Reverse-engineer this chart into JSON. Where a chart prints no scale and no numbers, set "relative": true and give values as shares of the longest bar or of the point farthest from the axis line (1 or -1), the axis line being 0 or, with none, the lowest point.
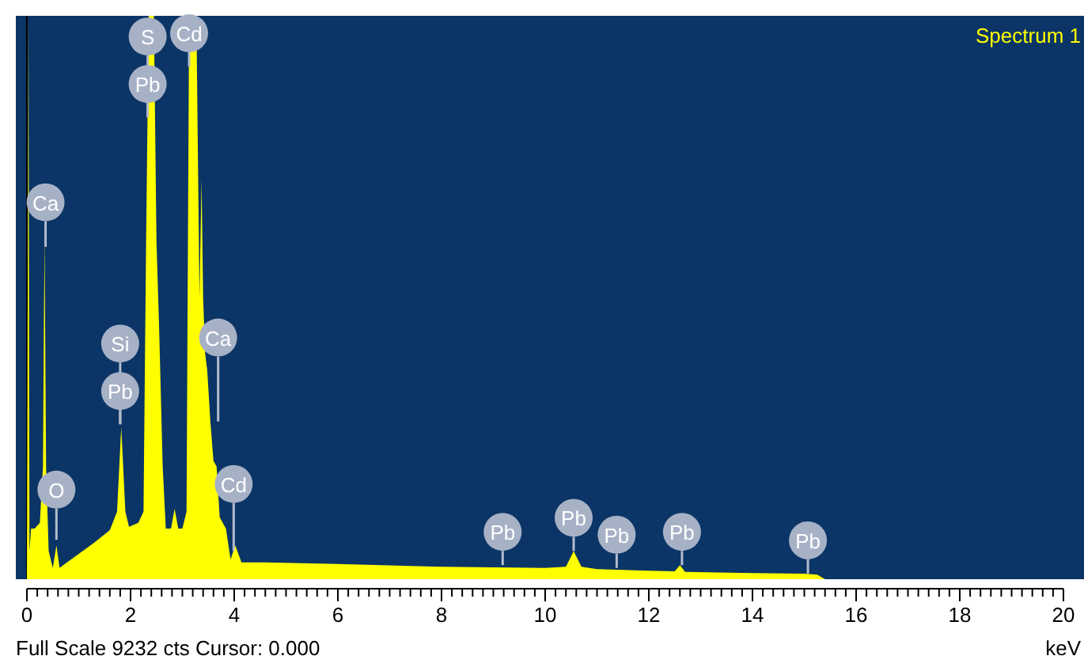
{
  "chart_data": {
    "type": "area",
    "relative": true,
    "xlabel": "keV",
    "xlim": [
      0,
      20
    ],
    "xticks": [
      0,
      {
        "value": 0.2,
        "label": null
      },
      {
        "value": 0.4,
        "label": null
      },
      {
        "value": 0.6,
        "label": null
      },
      {
        "value": 0.8,
        "label": null
      },
      {
        "value": 1,
        "label": null
      },
      {
        "value": 1.2,
        "label": null
      },
      {
        "value": 1.4,
        "label": null
      },
      {
        "value": 1.6,
        "label": null
      },
      {
        "value": 1.8,
        "label": null
      },
      2,
      {
        "value": 2.2,
        "label": null
      },
      {
        "value": 2.4,
        "label": null
      },
      {
        "value": 2.6,
        "label": null
      },
      {
        "value": 2.8,
        "label": null
      },
      {
        "value": 3,
        "label": null
      },
      {
        "value": 3.2,
        "label": null
      },
      {
        "value": 3.4,
        "label": null
      },
      {
        "value": 3.6,
        "label": null
      },
      {
        "value": 3.8,
        "label": null
      },
      4,
      {
        "value": 4.2,
        "label": null
      },
      {
        "value": 4.4,
        "label": null
      },
      {
        "value": 4.6,
        "label": null
      },
      {
        "value": 4.8,
        "label": null
      },
      {
        "value": 5,
        "label": null
      },
      {
        "value": 5.2,
        "label": null
      },
      {
        "value": 5.4,
        "label": null
      },
      {
        "value": 5.6,
        "label": null
      },
      {
        "value": 5.8,
        "label": null
      },
      6,
      {
        "value": 6.2,
        "label": null
      },
      {
        "value": 6.4,
        "label": null
      },
      {
        "value": 6.6,
        "label": null
      },
      {
        "value": 6.8,
        "label": null
      },
      {
        "value": 7,
        "label": null
      },
      {
        "value": 7.2,
        "label": null
      },
      {
        "value": 7.4,
        "label": null
      },
      {
        "value": 7.6,
        "label": null
      },
      {
        "value": 7.8,
        "label": null
      },
      8,
      {
        "value": 8.2,
        "label": null
      },
      {
        "value": 8.4,
        "label": null
      },
      {
        "value": 8.6,
        "label": null
      },
      {
        "value": 8.8,
        "label": null
      },
      {
        "value": 9,
        "label": null
      },
      {
        "value": 9.2,
        "label": null
      },
      {
        "value": 9.4,
        "label": null
      },
      {
        "value": 9.6,
        "label": null
      },
      {
        "value": 9.8,
        "label": null
      },
      10,
      {
        "value": 10.2,
        "label": null
      },
      {
        "value": 10.4,
        "label": null
      },
      {
        "value": 10.6,
        "label": null
      },
      {
        "value": 10.8,
        "label": null
      },
      {
        "value": 11,
        "label": null
      },
      {
        "value": 11.2,
        "label": null
      },
      {
        "value": 11.4,
        "label": null
      },
      {
        "value": 11.6,
        "label": null
      },
      {
        "value": 11.8,
        "label": null
      },
      12,
      {
        "value": 12.2,
        "label": null
      },
      {
        "value": 12.4,
        "label": null
      },
      {
        "value": 12.6,
        "label": null
      },
      {
        "value": 12.8,
        "label": null
      },
      {
        "value": 13,
        "label": null
      },
      {
        "value": 13.2,
        "label": null
      },
      {
        "value": 13.4,
        "label": null
      },
      {
        "value": 13.6,
        "label": null
      },
      {
        "value": 13.8,
        "label": null
      },
      14,
      {
        "value": 14.2,
        "label": null
      },
      {
        "value": 14.4,
        "label": null
      },
      {
        "value": 14.6,
        "label": null
      },
      {
        "value": 14.8,
        "label": null
      },
      {
        "value": 15,
        "label": null
      },
      {
        "value": 15.2,
        "label": null
      },
      {
        "value": 15.4,
        "label": null
      },
      {
        "value": 15.6,
        "label": null
      },
      {
        "value": 15.8,
        "label": null
      },
      16,
      {
        "value": 16.2,
        "label": null
      },
      {
        "value": 16.4,
        "label": null
      },
      {
        "value": 16.6,
        "label": null
      },
      {
        "value": 16.8,
        "label": null
      },
      {
        "value": 17,
        "label": null
      },
      {
        "value": 17.2,
        "label": null
      },
      {
        "value": 17.4,
        "label": null
      },
      {
        "value": 17.6,
        "label": null
      },
      {
        "value": 17.8,
        "label": null
      },
      18,
      {
        "value": 18.2,
        "label": null
      },
      {
        "value": 18.4,
        "label": null
      },
      {
        "value": 18.6,
        "label": null
      },
      {
        "value": 18.8,
        "label": null
      },
      {
        "value": 19,
        "label": null
      },
      {
        "value": 19.2,
        "label": null
      },
      {
        "value": 19.4,
        "label": null
      },
      {
        "value": 19.6,
        "label": null
      },
      {
        "value": 19.8,
        "label": null
      },
      20
    ],
    "series": [
      {
        "name": "Spectrum 1",
        "color": "#ffff00",
        "x": [
          0,
          0.03,
          0.05,
          0.08,
          0.15,
          0.25,
          0.31,
          0.34,
          0.37,
          0.42,
          0.5,
          0.57,
          0.63,
          0.7,
          1.0,
          1.3,
          1.6,
          1.74,
          1.82,
          1.9,
          1.97,
          2.15,
          2.25,
          2.3,
          2.35,
          2.45,
          2.5,
          2.55,
          2.62,
          2.68,
          2.78,
          2.85,
          2.92,
          3.0,
          3.08,
          3.13,
          3.27,
          3.33,
          3.37,
          3.4,
          3.44,
          3.48,
          3.54,
          3.6,
          3.66,
          3.72,
          3.84,
          3.93,
          4.02,
          4.14,
          4.6,
          6,
          8,
          10,
          10.4,
          10.55,
          10.7,
          11,
          12,
          12.5,
          12.6,
          12.7,
          14,
          15,
          15.25,
          15.4,
          20
        ],
        "values": [
          0,
          1,
          0.05,
          0.09,
          0.09,
          0.1,
          0.2,
          0.61,
          0.2,
          0.05,
          0.02,
          0.06,
          0.02,
          0.025,
          0.045,
          0.065,
          0.087,
          0.12,
          0.27,
          0.12,
          0.093,
          0.1,
          0.12,
          0.6,
          1,
          1,
          0.6,
          0.45,
          0.2,
          0.09,
          0.09,
          0.125,
          0.09,
          0.09,
          0.12,
          1,
          1,
          0.5,
          0.71,
          0.5,
          0.4,
          0.37,
          0.28,
          0.21,
          0.2,
          0.11,
          0.09,
          0.035,
          0.06,
          0.03,
          0.03,
          0.027,
          0.022,
          0.02,
          0.022,
          0.05,
          0.022,
          0.018,
          0.015,
          0.014,
          0.025,
          0.013,
          0.011,
          0.01,
          0.008,
          0,
          0
        ]
      }
    ],
    "annotations": [
      {
        "text": "Ca",
        "x": 0.36,
        "y": 0.59
      },
      {
        "text": "O",
        "x": 0.57,
        "y": 0.07
      },
      {
        "text": "Si",
        "x": 1.8,
        "y": 0.275
      },
      {
        "text": "Pb",
        "x": 1.8,
        "y": 0.275
      },
      {
        "text": "S",
        "x": 2.33,
        "y": 0.82
      },
      {
        "text": "Pb",
        "x": 2.33,
        "y": 0.82
      },
      {
        "text": "Cd",
        "x": 3.13,
        "y": 0.91
      },
      {
        "text": "Ca",
        "x": 3.69,
        "y": 0.28
      },
      {
        "text": "Cd",
        "x": 3.99,
        "y": 0.05
      },
      {
        "text": "Pb",
        "x": 9.18,
        "y": 0.025
      },
      {
        "text": "Pb",
        "x": 10.55,
        "y": 0.05
      },
      {
        "text": "Pb",
        "x": 11.38,
        "y": 0.02
      },
      {
        "text": "Pb",
        "x": 12.64,
        "y": 0.025
      },
      {
        "text": "Pb",
        "x": 15.07,
        "y": 0.01
      },
      "Full Scale 9232 cts Cursor: 0.000"
    ]
  }
}
